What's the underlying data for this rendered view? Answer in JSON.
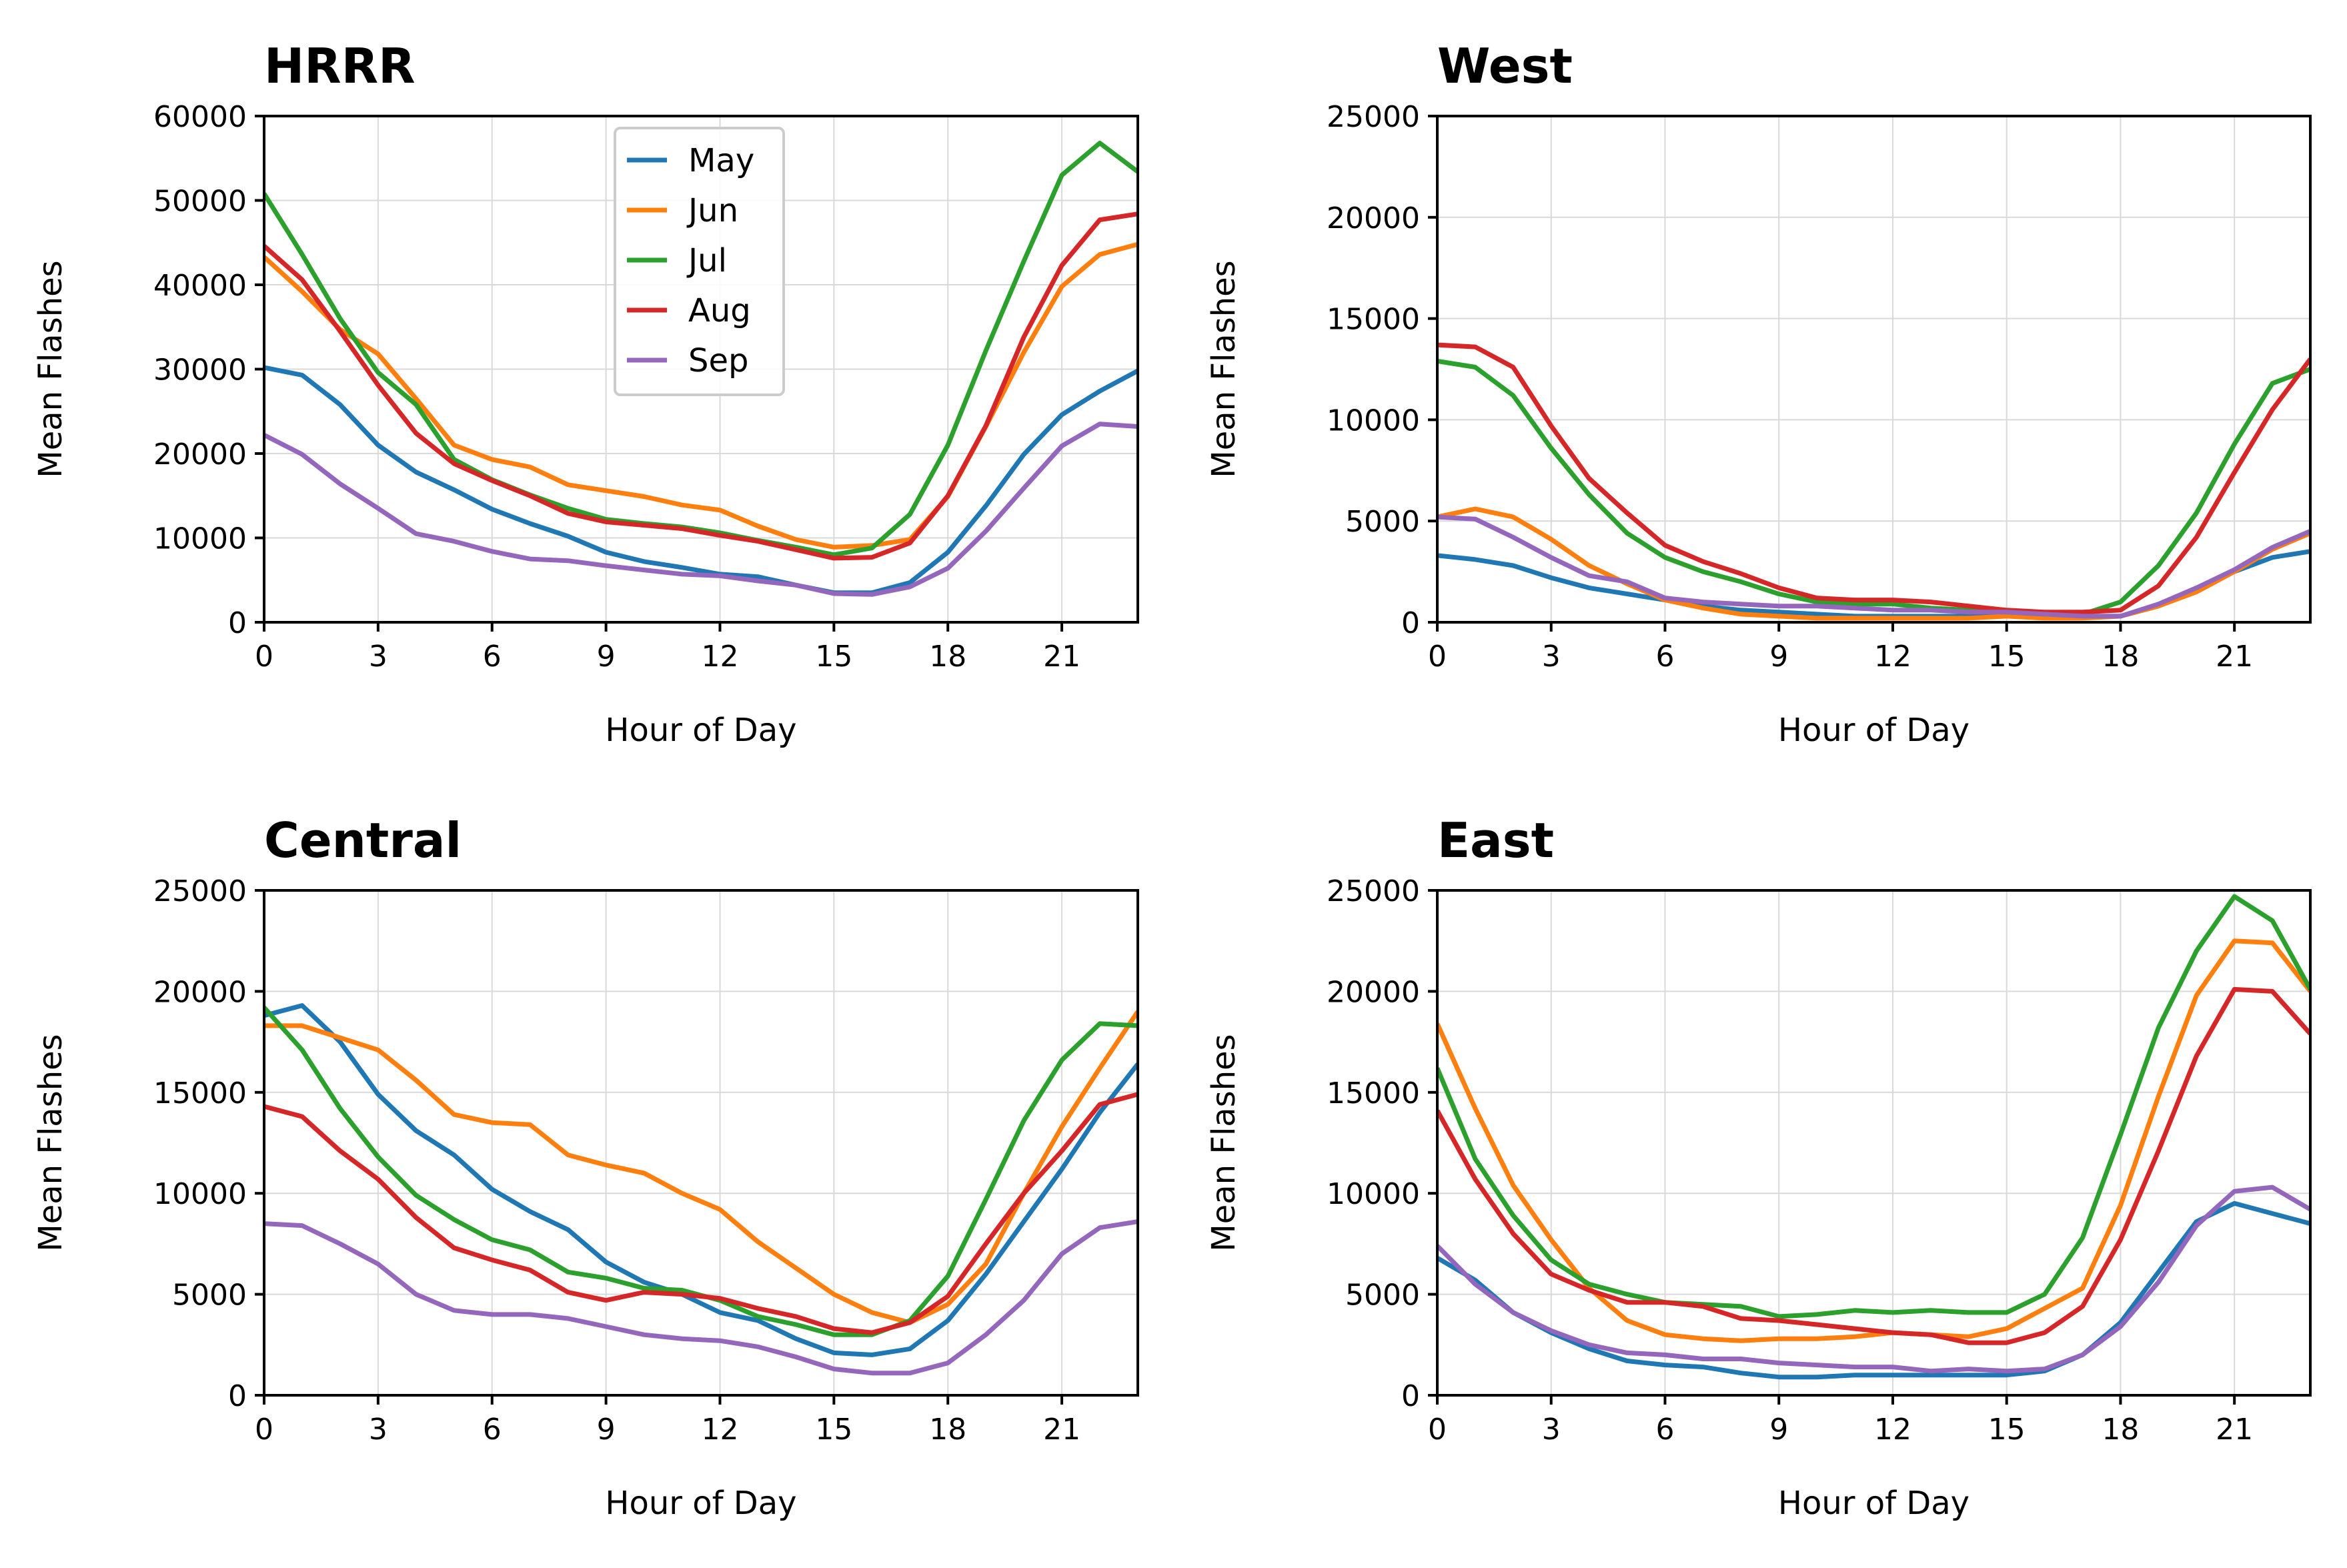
{
  "figure": {
    "panels": [
      "hrrr",
      "west",
      "central",
      "east"
    ]
  },
  "chart_data": [
    {
      "id": "hrrr",
      "type": "line",
      "title": "HRRR",
      "xlabel": "Hour of Day",
      "ylabel": "Mean Flashes",
      "xlim": [
        0,
        23
      ],
      "ylim": [
        0,
        60000
      ],
      "xticks": [
        0,
        3,
        6,
        9,
        12,
        15,
        18,
        21
      ],
      "yticks": [
        0,
        10000,
        20000,
        30000,
        40000,
        50000,
        60000
      ],
      "grid": true,
      "legend": {
        "show": true,
        "placement": "upper-center"
      },
      "x": [
        0,
        1,
        2,
        3,
        4,
        5,
        6,
        7,
        8,
        9,
        10,
        11,
        12,
        13,
        14,
        15,
        16,
        17,
        18,
        19,
        20,
        21,
        22,
        23
      ],
      "series": [
        {
          "name": "May",
          "color": "#1f77b4",
          "values": [
            30200,
            29300,
            25800,
            21000,
            17800,
            15700,
            13400,
            11700,
            10200,
            8300,
            7200,
            6500,
            5700,
            5400,
            4400,
            3500,
            3500,
            4700,
            8300,
            13800,
            19900,
            24600,
            27400,
            29800
          ]
        },
        {
          "name": "Jun",
          "color": "#ff7f0e",
          "values": [
            43300,
            39200,
            34700,
            31800,
            26500,
            21000,
            19300,
            18400,
            16300,
            15600,
            14900,
            13900,
            13300,
            11400,
            9800,
            8900,
            9100,
            9800,
            14900,
            23200,
            32000,
            39800,
            43600,
            44800
          ]
        },
        {
          "name": "Jul",
          "color": "#2ca02c",
          "values": [
            50800,
            43600,
            36000,
            29600,
            25800,
            19300,
            16900,
            15100,
            13500,
            12200,
            11700,
            11300,
            10600,
            9700,
            8900,
            8000,
            8800,
            12800,
            21000,
            32200,
            42800,
            53000,
            56800,
            53400
          ]
        },
        {
          "name": "Aug",
          "color": "#d62728",
          "values": [
            44600,
            40600,
            34500,
            28100,
            22400,
            18800,
            16800,
            15000,
            12900,
            11900,
            11500,
            11100,
            10300,
            9600,
            8600,
            7600,
            7700,
            9400,
            15000,
            23300,
            33800,
            42300,
            47700,
            48400
          ]
        },
        {
          "name": "Sep",
          "color": "#9467bd",
          "values": [
            22200,
            19900,
            16400,
            13500,
            10500,
            9600,
            8400,
            7500,
            7300,
            6700,
            6200,
            5700,
            5500,
            4900,
            4400,
            3400,
            3300,
            4200,
            6400,
            10800,
            15900,
            20900,
            23500,
            23200
          ]
        }
      ]
    },
    {
      "id": "west",
      "type": "line",
      "title": "West",
      "xlabel": "Hour of Day",
      "ylabel": "Mean Flashes",
      "xlim": [
        0,
        23
      ],
      "ylim": [
        0,
        25000
      ],
      "xticks": [
        0,
        3,
        6,
        9,
        12,
        15,
        18,
        21
      ],
      "yticks": [
        0,
        5000,
        10000,
        15000,
        20000,
        25000
      ],
      "grid": true,
      "legend": {
        "show": false
      },
      "x": [
        0,
        1,
        2,
        3,
        4,
        5,
        6,
        7,
        8,
        9,
        10,
        11,
        12,
        13,
        14,
        15,
        16,
        17,
        18,
        19,
        20,
        21,
        22,
        23
      ],
      "series": [
        {
          "name": "May",
          "color": "#1f77b4",
          "values": [
            3300,
            3100,
            2800,
            2200,
            1700,
            1400,
            1100,
            800,
            600,
            500,
            400,
            300,
            300,
            300,
            300,
            300,
            300,
            300,
            300,
            800,
            1600,
            2500,
            3200,
            3500
          ]
        },
        {
          "name": "Jun",
          "color": "#ff7f0e",
          "values": [
            5200,
            5600,
            5200,
            4100,
            2800,
            1900,
            1100,
            700,
            400,
            300,
            200,
            200,
            200,
            200,
            200,
            300,
            200,
            200,
            300,
            800,
            1500,
            2500,
            3600,
            4400
          ]
        },
        {
          "name": "Jul",
          "color": "#2ca02c",
          "values": [
            12900,
            12600,
            11200,
            8600,
            6300,
            4400,
            3200,
            2500,
            2000,
            1400,
            1000,
            900,
            900,
            700,
            600,
            500,
            400,
            400,
            1000,
            2800,
            5400,
            8800,
            11800,
            12500
          ]
        },
        {
          "name": "Aug",
          "color": "#d62728",
          "values": [
            13700,
            13600,
            12600,
            9700,
            7100,
            5400,
            3800,
            3000,
            2400,
            1700,
            1200,
            1100,
            1100,
            1000,
            800,
            600,
            500,
            500,
            600,
            1800,
            4200,
            7400,
            10500,
            13000
          ]
        },
        {
          "name": "Sep",
          "color": "#9467bd",
          "values": [
            5200,
            5100,
            4200,
            3200,
            2300,
            2000,
            1200,
            1000,
            900,
            800,
            800,
            700,
            600,
            600,
            500,
            500,
            400,
            300,
            300,
            900,
            1700,
            2600,
            3700,
            4500
          ]
        }
      ]
    },
    {
      "id": "central",
      "type": "line",
      "title": "Central",
      "xlabel": "Hour of Day",
      "ylabel": "Mean Flashes",
      "xlim": [
        0,
        23
      ],
      "ylim": [
        0,
        25000
      ],
      "xticks": [
        0,
        3,
        6,
        9,
        12,
        15,
        18,
        21
      ],
      "yticks": [
        0,
        5000,
        10000,
        15000,
        20000,
        25000
      ],
      "grid": true,
      "legend": {
        "show": false
      },
      "x": [
        0,
        1,
        2,
        3,
        4,
        5,
        6,
        7,
        8,
        9,
        10,
        11,
        12,
        13,
        14,
        15,
        16,
        17,
        18,
        19,
        20,
        21,
        22,
        23
      ],
      "series": [
        {
          "name": "May",
          "color": "#1f77b4",
          "values": [
            18800,
            19300,
            17500,
            14900,
            13100,
            11900,
            10200,
            9100,
            8200,
            6600,
            5600,
            5000,
            4100,
            3700,
            2800,
            2100,
            2000,
            2300,
            3700,
            6000,
            8600,
            11200,
            14000,
            16400
          ]
        },
        {
          "name": "Jun",
          "color": "#ff7f0e",
          "values": [
            18300,
            18300,
            17700,
            17100,
            15600,
            13900,
            13500,
            13400,
            11900,
            11400,
            11000,
            10000,
            9200,
            7600,
            6300,
            5000,
            4100,
            3600,
            4500,
            6500,
            10000,
            13300,
            16200,
            19000
          ]
        },
        {
          "name": "Jul",
          "color": "#2ca02c",
          "values": [
            19200,
            17100,
            14200,
            11800,
            9900,
            8700,
            7700,
            7200,
            6100,
            5800,
            5300,
            5200,
            4700,
            3900,
            3500,
            3000,
            3000,
            3700,
            5900,
            9700,
            13600,
            16600,
            18400,
            18300
          ]
        },
        {
          "name": "Aug",
          "color": "#d62728",
          "values": [
            14300,
            13800,
            12100,
            10700,
            8800,
            7300,
            6700,
            6200,
            5100,
            4700,
            5100,
            5000,
            4800,
            4300,
            3900,
            3300,
            3100,
            3600,
            4900,
            7500,
            10000,
            12100,
            14400,
            14900
          ]
        },
        {
          "name": "Sep",
          "color": "#9467bd",
          "values": [
            8500,
            8400,
            7500,
            6500,
            5000,
            4200,
            4000,
            4000,
            3800,
            3400,
            3000,
            2800,
            2700,
            2400,
            1900,
            1300,
            1100,
            1100,
            1600,
            3000,
            4700,
            7000,
            8300,
            8600
          ]
        }
      ]
    },
    {
      "id": "east",
      "type": "line",
      "title": "East",
      "xlabel": "Hour of Day",
      "ylabel": "Mean Flashes",
      "xlim": [
        0,
        23
      ],
      "ylim": [
        0,
        25000
      ],
      "xticks": [
        0,
        3,
        6,
        9,
        12,
        15,
        18,
        21
      ],
      "yticks": [
        0,
        5000,
        10000,
        15000,
        20000,
        25000
      ],
      "grid": true,
      "legend": {
        "show": false
      },
      "x": [
        0,
        1,
        2,
        3,
        4,
        5,
        6,
        7,
        8,
        9,
        10,
        11,
        12,
        13,
        14,
        15,
        16,
        17,
        18,
        19,
        20,
        21,
        22,
        23
      ],
      "series": [
        {
          "name": "May",
          "color": "#1f77b4",
          "values": [
            6800,
            5700,
            4100,
            3100,
            2300,
            1700,
            1500,
            1400,
            1100,
            900,
            900,
            1000,
            1000,
            1000,
            1000,
            1000,
            1200,
            2000,
            3600,
            6100,
            8600,
            9500,
            9000,
            8500
          ]
        },
        {
          "name": "Jun",
          "color": "#ff7f0e",
          "values": [
            18400,
            14200,
            10400,
            7700,
            5300,
            3700,
            3000,
            2800,
            2700,
            2800,
            2800,
            2900,
            3100,
            3000,
            2900,
            3300,
            4300,
            5300,
            9400,
            14800,
            19800,
            22500,
            22400,
            20000
          ]
        },
        {
          "name": "Jul",
          "color": "#2ca02c",
          "values": [
            16200,
            11700,
            8900,
            6700,
            5500,
            5000,
            4600,
            4500,
            4400,
            3900,
            4000,
            4200,
            4100,
            4200,
            4100,
            4100,
            5000,
            7800,
            12900,
            18200,
            22000,
            24700,
            23500,
            20100
          ]
        },
        {
          "name": "Aug",
          "color": "#d62728",
          "values": [
            14100,
            10700,
            8000,
            6000,
            5200,
            4600,
            4600,
            4400,
            3800,
            3700,
            3500,
            3300,
            3100,
            3000,
            2600,
            2600,
            3100,
            4400,
            7700,
            12100,
            16800,
            20100,
            20000,
            17900
          ]
        },
        {
          "name": "Sep",
          "color": "#9467bd",
          "values": [
            7400,
            5500,
            4100,
            3200,
            2500,
            2100,
            2000,
            1800,
            1800,
            1600,
            1500,
            1400,
            1400,
            1200,
            1300,
            1200,
            1300,
            2000,
            3400,
            5600,
            8400,
            10100,
            10300,
            9200
          ]
        }
      ]
    }
  ]
}
